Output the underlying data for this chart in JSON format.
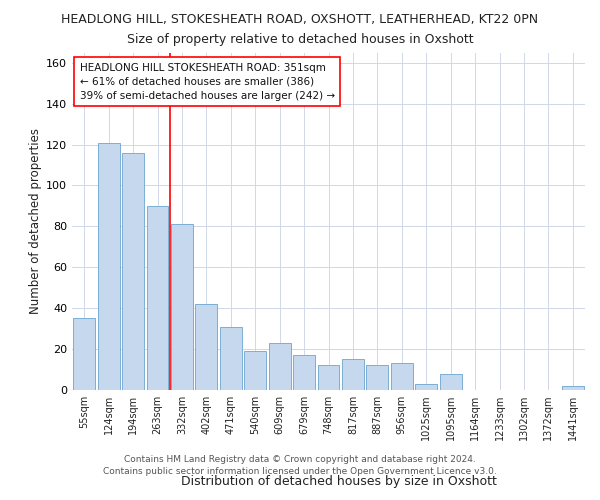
{
  "title_line1": "HEADLONG HILL, STOKESHEATH ROAD, OXSHOTT, LEATHERHEAD, KT22 0PN",
  "title_line2": "Size of property relative to detached houses in Oxshott",
  "xlabel": "Distribution of detached houses by size in Oxshott",
  "ylabel": "Number of detached properties",
  "categories": [
    "55sqm",
    "124sqm",
    "194sqm",
    "263sqm",
    "332sqm",
    "402sqm",
    "471sqm",
    "540sqm",
    "609sqm",
    "679sqm",
    "748sqm",
    "817sqm",
    "887sqm",
    "956sqm",
    "1025sqm",
    "1095sqm",
    "1164sqm",
    "1233sqm",
    "1302sqm",
    "1372sqm",
    "1441sqm"
  ],
  "values": [
    35,
    121,
    116,
    90,
    81,
    42,
    31,
    19,
    23,
    17,
    12,
    15,
    12,
    13,
    3,
    8,
    0,
    0,
    0,
    0,
    2
  ],
  "bar_color": "#c5d8ed",
  "bar_edge_color": "#7bafd4",
  "red_line_x": 4.5,
  "ylim": [
    0,
    165
  ],
  "yticks": [
    0,
    20,
    40,
    60,
    80,
    100,
    120,
    140,
    160
  ],
  "annotation_title": "HEADLONG HILL STOKESHEATH ROAD: 351sqm",
  "annotation_line2": "← 61% of detached houses are smaller (386)",
  "annotation_line3": "39% of semi-detached houses are larger (242) →",
  "footer_line1": "Contains HM Land Registry data © Crown copyright and database right 2024.",
  "footer_line2": "Contains public sector information licensed under the Open Government Licence v3.0.",
  "background_color": "#ffffff",
  "grid_color": "#d0d8e8",
  "title1_fontsize": 9,
  "title2_fontsize": 9,
  "ylabel_fontsize": 8.5,
  "xlabel_fontsize": 9,
  "tick_fontsize": 7,
  "footer_fontsize": 6.5,
  "ann_fontsize": 7.5
}
